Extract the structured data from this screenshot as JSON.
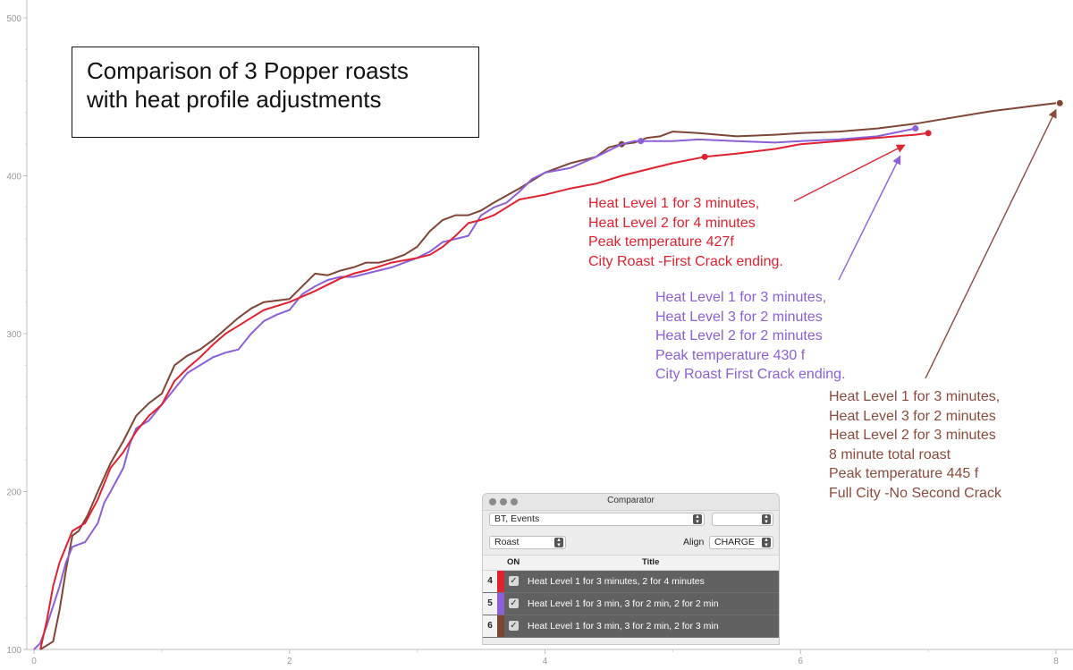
{
  "chart_data": {
    "type": "line",
    "title": "Comparison of 3 Popper roasts\nwith heat profile adjustments",
    "xlabel": "",
    "ylabel": "",
    "xlim": [
      0,
      8.1
    ],
    "ylim": [
      100,
      510
    ],
    "x_ticks": [
      "0",
      "2",
      "4",
      "6",
      "8"
    ],
    "y_ticks": [
      "100",
      "200",
      "300",
      "400",
      "500"
    ],
    "grid": false,
    "series": [
      {
        "color": "#7e4536",
        "points": [
          [
            0.05,
            100
          ],
          [
            0.15,
            105
          ],
          [
            0.2,
            125
          ],
          [
            0.25,
            150
          ],
          [
            0.3,
            172
          ],
          [
            0.35,
            175
          ],
          [
            0.42,
            185
          ],
          [
            0.5,
            200
          ],
          [
            0.6,
            218
          ],
          [
            0.7,
            232
          ],
          [
            0.8,
            248
          ],
          [
            0.9,
            256
          ],
          [
            1.0,
            262
          ],
          [
            1.1,
            280
          ],
          [
            1.2,
            286
          ],
          [
            1.3,
            290
          ],
          [
            1.4,
            296
          ],
          [
            1.5,
            303
          ],
          [
            1.6,
            310
          ],
          [
            1.7,
            316
          ],
          [
            1.8,
            320
          ],
          [
            2.0,
            322
          ],
          [
            2.1,
            330
          ],
          [
            2.2,
            338
          ],
          [
            2.3,
            337
          ],
          [
            2.4,
            340
          ],
          [
            2.5,
            342
          ],
          [
            2.6,
            345
          ],
          [
            2.7,
            345
          ],
          [
            2.8,
            347
          ],
          [
            2.9,
            350
          ],
          [
            3.0,
            355
          ],
          [
            3.1,
            365
          ],
          [
            3.2,
            372
          ],
          [
            3.3,
            375
          ],
          [
            3.4,
            375
          ],
          [
            3.5,
            378
          ],
          [
            3.6,
            383
          ],
          [
            3.8,
            392
          ],
          [
            4.0,
            402
          ],
          [
            4.2,
            408
          ],
          [
            4.4,
            412
          ],
          [
            4.5,
            418
          ],
          [
            4.6,
            420
          ],
          [
            4.7,
            421
          ],
          [
            4.8,
            424
          ],
          [
            4.9,
            425
          ],
          [
            5.0,
            428
          ],
          [
            5.2,
            427
          ],
          [
            5.5,
            425
          ],
          [
            5.8,
            426
          ],
          [
            6.0,
            427
          ],
          [
            6.3,
            428
          ],
          [
            6.6,
            430
          ],
          [
            6.9,
            433
          ],
          [
            7.2,
            437
          ],
          [
            7.5,
            441
          ],
          [
            7.8,
            444
          ],
          [
            8.0,
            446
          ]
        ],
        "markers": [
          [
            4.6,
            420
          ],
          [
            8.03,
            446
          ]
        ]
      },
      {
        "color": "#8b5fd8",
        "points": [
          [
            0.0,
            100
          ],
          [
            0.05,
            104
          ],
          [
            0.1,
            115
          ],
          [
            0.2,
            140
          ],
          [
            0.25,
            155
          ],
          [
            0.3,
            165
          ],
          [
            0.4,
            168
          ],
          [
            0.5,
            180
          ],
          [
            0.55,
            193
          ],
          [
            0.6,
            200
          ],
          [
            0.7,
            215
          ],
          [
            0.75,
            230
          ],
          [
            0.8,
            240
          ],
          [
            0.9,
            245
          ],
          [
            1.0,
            255
          ],
          [
            1.1,
            265
          ],
          [
            1.2,
            275
          ],
          [
            1.3,
            280
          ],
          [
            1.4,
            285
          ],
          [
            1.5,
            288
          ],
          [
            1.6,
            290
          ],
          [
            1.7,
            300
          ],
          [
            1.8,
            308
          ],
          [
            1.9,
            312
          ],
          [
            2.0,
            315
          ],
          [
            2.1,
            325
          ],
          [
            2.2,
            330
          ],
          [
            2.3,
            334
          ],
          [
            2.4,
            336
          ],
          [
            2.5,
            336
          ],
          [
            2.6,
            338
          ],
          [
            2.7,
            340
          ],
          [
            2.8,
            342
          ],
          [
            2.9,
            345
          ],
          [
            3.0,
            348
          ],
          [
            3.1,
            352
          ],
          [
            3.2,
            358
          ],
          [
            3.3,
            360
          ],
          [
            3.4,
            362
          ],
          [
            3.5,
            375
          ],
          [
            3.6,
            380
          ],
          [
            3.7,
            383
          ],
          [
            3.8,
            390
          ],
          [
            3.9,
            398
          ],
          [
            4.0,
            402
          ],
          [
            4.2,
            405
          ],
          [
            4.4,
            412
          ],
          [
            4.5,
            416
          ],
          [
            4.6,
            420
          ],
          [
            4.7,
            422
          ],
          [
            5.0,
            422
          ],
          [
            5.2,
            423
          ],
          [
            5.5,
            422
          ],
          [
            5.8,
            421
          ],
          [
            6.0,
            422
          ],
          [
            6.3,
            423
          ],
          [
            6.6,
            425
          ],
          [
            6.9,
            430
          ]
        ],
        "markers": [
          [
            4.75,
            422
          ],
          [
            6.9,
            430
          ]
        ]
      },
      {
        "color": "#e0212f",
        "points": [
          [
            0.05,
            100
          ],
          [
            0.1,
            118
          ],
          [
            0.15,
            140
          ],
          [
            0.2,
            155
          ],
          [
            0.25,
            165
          ],
          [
            0.3,
            175
          ],
          [
            0.4,
            180
          ],
          [
            0.5,
            195
          ],
          [
            0.6,
            215
          ],
          [
            0.7,
            225
          ],
          [
            0.8,
            238
          ],
          [
            0.9,
            248
          ],
          [
            1.0,
            255
          ],
          [
            1.1,
            270
          ],
          [
            1.2,
            278
          ],
          [
            1.3,
            285
          ],
          [
            1.4,
            293
          ],
          [
            1.5,
            300
          ],
          [
            1.6,
            305
          ],
          [
            1.7,
            310
          ],
          [
            1.8,
            315
          ],
          [
            2.0,
            320
          ],
          [
            2.2,
            327
          ],
          [
            2.4,
            335
          ],
          [
            2.5,
            338
          ],
          [
            2.6,
            340
          ],
          [
            2.8,
            345
          ],
          [
            3.0,
            348
          ],
          [
            3.1,
            350
          ],
          [
            3.2,
            355
          ],
          [
            3.3,
            362
          ],
          [
            3.4,
            370
          ],
          [
            3.5,
            372
          ],
          [
            3.6,
            375
          ],
          [
            3.7,
            380
          ],
          [
            3.8,
            385
          ],
          [
            4.0,
            388
          ],
          [
            4.2,
            392
          ],
          [
            4.4,
            395
          ],
          [
            4.6,
            400
          ],
          [
            4.8,
            404
          ],
          [
            5.0,
            408
          ],
          [
            5.25,
            412
          ],
          [
            5.5,
            414
          ],
          [
            5.8,
            417
          ],
          [
            6.0,
            420
          ],
          [
            6.3,
            422
          ],
          [
            6.6,
            424
          ],
          [
            6.9,
            426
          ],
          [
            7.0,
            427
          ]
        ],
        "markers": [
          [
            5.25,
            412
          ],
          [
            7.0,
            427
          ]
        ]
      }
    ],
    "annotations": [
      {
        "color": "#e0212f",
        "lines": [
          "Heat Level 1 for 3 minutes,",
          "Heat Level 2 for 4 minutes",
          "Peak temperature 427f",
          "City Roast -First Crack ending."
        ],
        "target": [
          6.9,
          424
        ]
      },
      {
        "color": "#8b5fd8",
        "lines": [
          "Heat Level 1 for 3 minutes,",
          "Heat Level 3 for 2 minutes",
          "Heat Level 2 for 2 minutes",
          "Peak temperature 430 f",
          "City Roast First Crack ending."
        ],
        "target": [
          6.85,
          417
        ]
      },
      {
        "color": "#8c4a3c",
        "lines": [
          "Heat Level 1 for 3 minutes,",
          "Heat Level 3 for 2 minutes",
          "Heat Level 2 for 3 minutes",
          "8 minute total roast",
          "Peak temperature 445 f",
          "Full City -No Second Crack"
        ],
        "target": [
          8.0,
          443
        ]
      }
    ]
  },
  "comparator": {
    "window_title": "Comparator",
    "curve_select": "BT, Events",
    "curve_select2": "",
    "mode_select": "Roast",
    "align_label": "Align",
    "align_select": "CHARGE",
    "col_on": "ON",
    "col_title": "Title",
    "rows": [
      {
        "num": "4",
        "color": "#e0212f",
        "title": "Heat Level 1 for 3 minutes, 2 for 4 minutes"
      },
      {
        "num": "5",
        "color": "#8b5fd8",
        "title": "Heat Level 1 for 3 min, 3 for 2 min, 2 for 2 min"
      },
      {
        "num": "6",
        "color": "#7e4536",
        "title": "Heat Level 1 for 3 min, 3 for 2 min, 2 for 3 min"
      }
    ]
  }
}
